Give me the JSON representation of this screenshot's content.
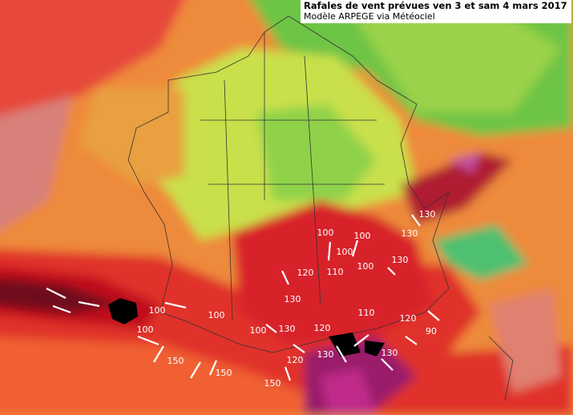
{
  "header": {
    "title": "Rafales de vent prévues ven 3 et sam 4 mars 2017",
    "subtitle": "Modèle ARPEGE via Météociel"
  },
  "labels": [
    130,
    130,
    100,
    100,
    100,
    100,
    130,
    120,
    110,
    130,
    110,
    100,
    100,
    120,
    90,
    100,
    100,
    130,
    120,
    130,
    130,
    150,
    120,
    150,
    150
  ]
}
